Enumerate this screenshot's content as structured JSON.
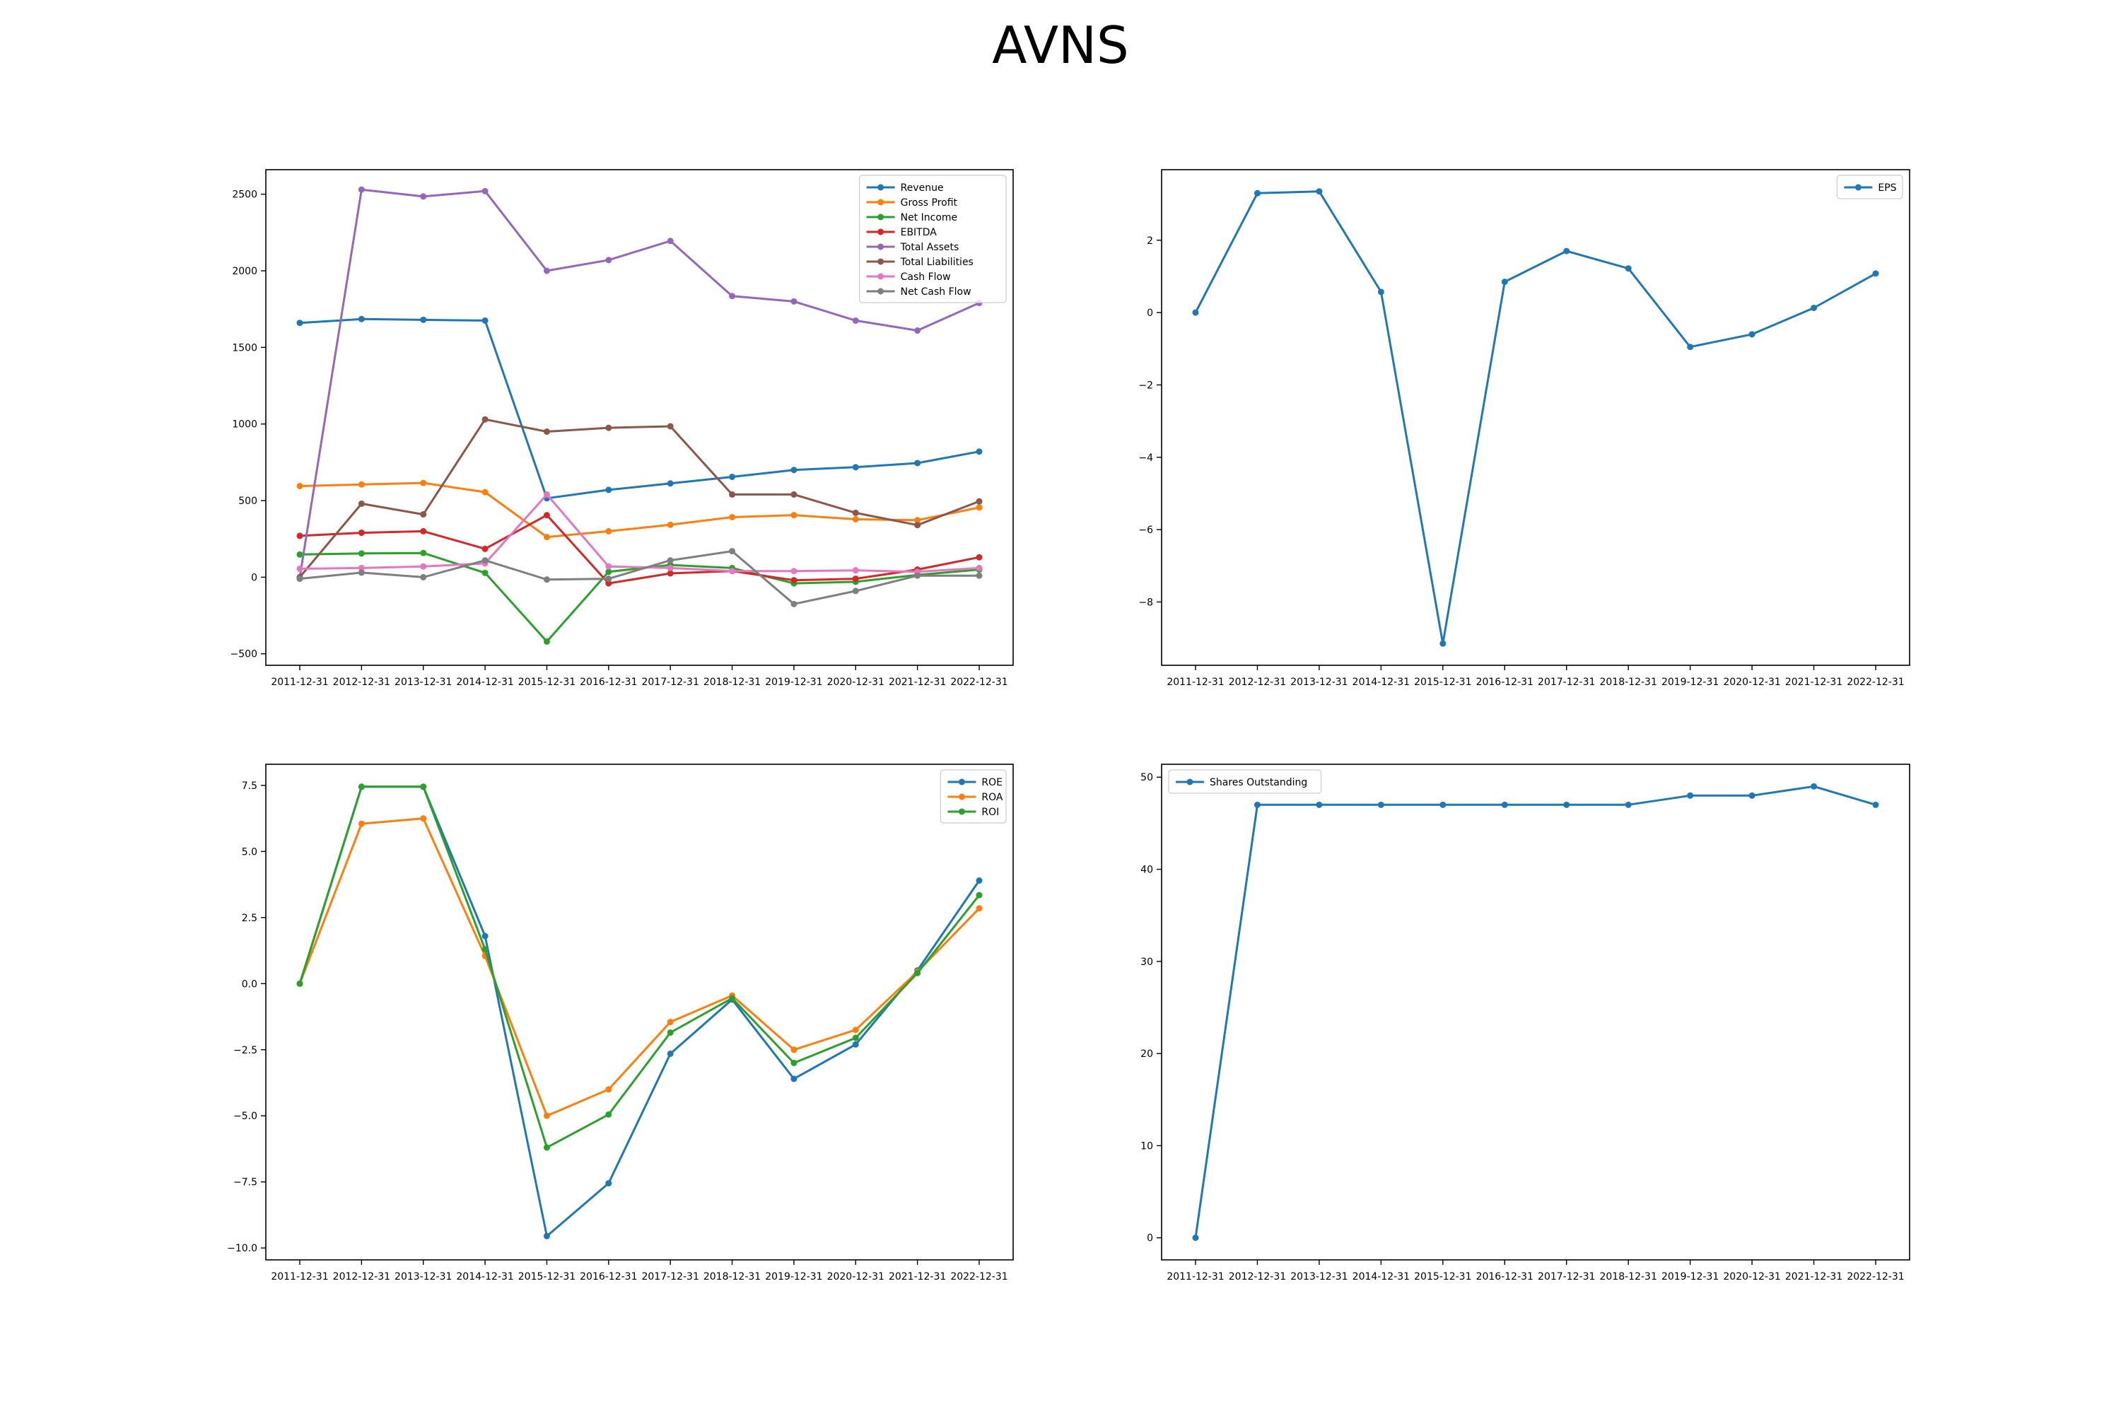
{
  "figure": {
    "title": "AVNS"
  },
  "chart_data": [
    {
      "type": "line",
      "title": "",
      "x": [
        "2011-12-31",
        "2012-12-31",
        "2013-12-31",
        "2014-12-31",
        "2015-12-31",
        "2016-12-31",
        "2017-12-31",
        "2018-12-31",
        "2019-12-31",
        "2020-12-31",
        "2021-12-31",
        "2022-12-31"
      ],
      "ylim": [
        -575,
        2660
      ],
      "yticks": [
        -500,
        0,
        500,
        1000,
        1500,
        2000,
        2500
      ],
      "legend": "top-right",
      "series": [
        {
          "name": "Revenue",
          "color": "#1f77b4",
          "values": [
            1660,
            1685,
            1680,
            1675,
            515,
            570,
            612,
            655,
            700,
            718,
            745,
            820
          ]
        },
        {
          "name": "Gross Profit",
          "color": "#ff7f0e",
          "values": [
            595,
            605,
            615,
            555,
            262,
            300,
            342,
            392,
            405,
            378,
            372,
            455
          ]
        },
        {
          "name": "Net Income",
          "color": "#2ca02c",
          "values": [
            148,
            155,
            158,
            28,
            -420,
            35,
            80,
            60,
            -40,
            -30,
            15,
            50
          ]
        },
        {
          "name": "EBITDA",
          "color": "#d62728",
          "values": [
            270,
            290,
            300,
            185,
            405,
            -40,
            25,
            40,
            -20,
            -10,
            50,
            130
          ]
        },
        {
          "name": "Total Assets",
          "color": "#9467bd",
          "values": [
            0,
            2530,
            2485,
            2520,
            2000,
            2070,
            2195,
            1835,
            1800,
            1675,
            1610,
            1790
          ]
        },
        {
          "name": "Total Liabilities",
          "color": "#8c564b",
          "values": [
            0,
            480,
            410,
            1030,
            950,
            975,
            985,
            540,
            540,
            420,
            340,
            495
          ]
        },
        {
          "name": "Cash Flow",
          "color": "#e377c2",
          "values": [
            55,
            60,
            70,
            90,
            540,
            70,
            60,
            40,
            40,
            45,
            35,
            60
          ]
        },
        {
          "name": "Net Cash Flow",
          "color": "#7f7f7f",
          "values": [
            -10,
            30,
            0,
            110,
            -15,
            -10,
            110,
            170,
            -175,
            -90,
            10,
            10
          ]
        }
      ]
    },
    {
      "type": "line",
      "title": "",
      "x": [
        "2011-12-31",
        "2012-12-31",
        "2013-12-31",
        "2014-12-31",
        "2015-12-31",
        "2016-12-31",
        "2017-12-31",
        "2018-12-31",
        "2019-12-31",
        "2020-12-31",
        "2021-12-31",
        "2022-12-31"
      ],
      "ylim": [
        -9.75,
        3.95
      ],
      "yticks": [
        -8,
        -6,
        -4,
        -2,
        0,
        2
      ],
      "legend": "top-right",
      "series": [
        {
          "name": "EPS",
          "color": "#1f77b4",
          "values": [
            0,
            3.3,
            3.35,
            0.57,
            -9.15,
            0.85,
            1.7,
            1.22,
            -0.95,
            -0.6,
            0.13,
            1.08
          ]
        }
      ]
    },
    {
      "type": "line",
      "title": "",
      "x": [
        "2011-12-31",
        "2012-12-31",
        "2013-12-31",
        "2014-12-31",
        "2015-12-31",
        "2016-12-31",
        "2017-12-31",
        "2018-12-31",
        "2019-12-31",
        "2020-12-31",
        "2021-12-31",
        "2022-12-31"
      ],
      "ylim": [
        -10.45,
        8.3
      ],
      "yticks": [
        -10.0,
        -7.5,
        -5.0,
        -2.5,
        0.0,
        2.5,
        5.0,
        7.5
      ],
      "legend": "top-right",
      "series": [
        {
          "name": "ROE",
          "color": "#1f77b4",
          "values": [
            0,
            7.45,
            7.45,
            1.8,
            -9.55,
            -7.55,
            -2.65,
            -0.6,
            -3.6,
            -2.3,
            0.5,
            3.9
          ]
        },
        {
          "name": "ROA",
          "color": "#ff7f0e",
          "values": [
            0,
            6.05,
            6.25,
            1.05,
            -5.0,
            -4.0,
            -1.45,
            -0.45,
            -2.5,
            -1.75,
            0.45,
            2.85
          ]
        },
        {
          "name": "ROI",
          "color": "#2ca02c",
          "values": [
            0,
            7.45,
            7.45,
            1.3,
            -6.2,
            -4.95,
            -1.85,
            -0.55,
            -3.0,
            -2.05,
            0.4,
            3.35
          ]
        }
      ]
    },
    {
      "type": "line",
      "title": "",
      "x": [
        "2011-12-31",
        "2012-12-31",
        "2013-12-31",
        "2014-12-31",
        "2015-12-31",
        "2016-12-31",
        "2017-12-31",
        "2018-12-31",
        "2019-12-31",
        "2020-12-31",
        "2021-12-31",
        "2022-12-31"
      ],
      "ylim": [
        -2.4,
        51.4
      ],
      "yticks": [
        0,
        10,
        20,
        30,
        40,
        50
      ],
      "legend": "top-left",
      "series": [
        {
          "name": "Shares Outstanding",
          "color": "#1f77b4",
          "values": [
            0,
            47,
            47,
            47,
            47,
            47,
            47,
            47,
            48,
            48,
            49,
            47
          ]
        }
      ]
    }
  ]
}
